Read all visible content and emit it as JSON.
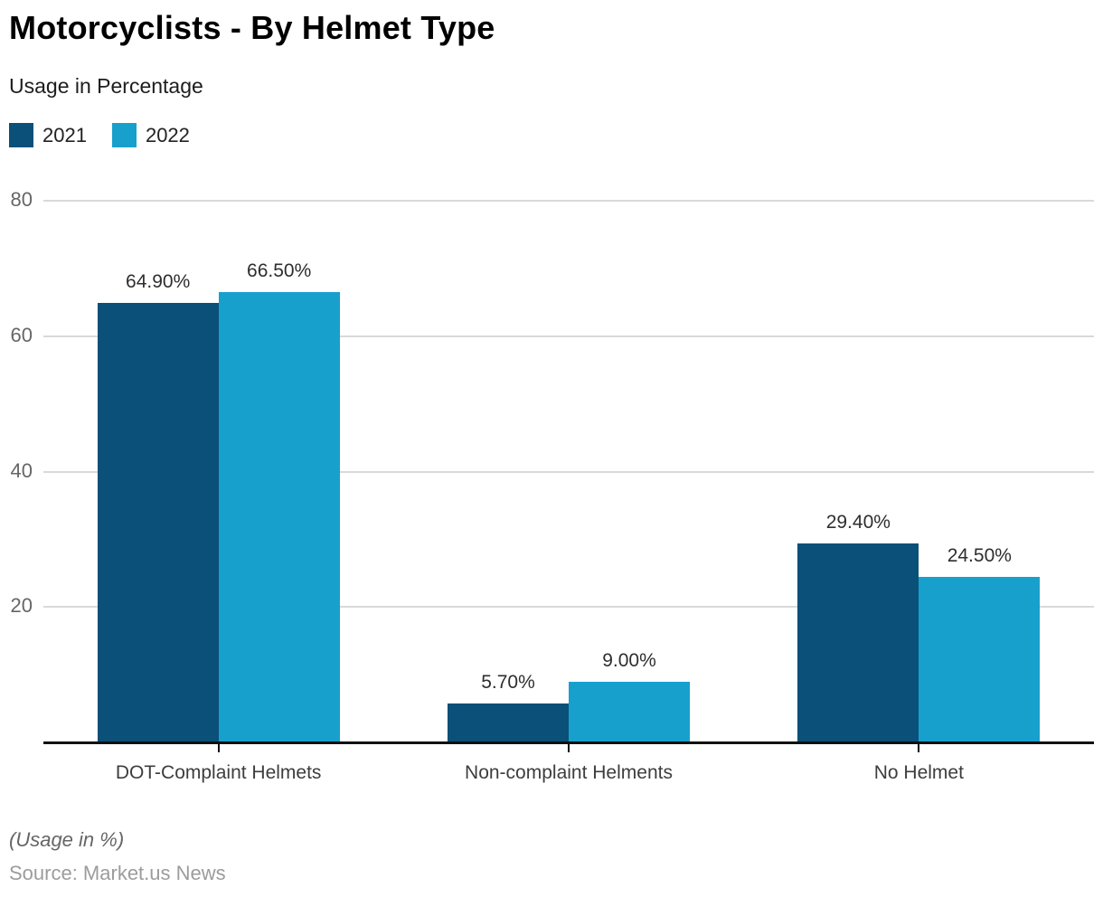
{
  "header": {
    "title": "Motorcyclists - By Helmet Type",
    "subtitle": "Usage in Percentage"
  },
  "footer": {
    "note": "(Usage in %)",
    "source": "Source: Market.us News"
  },
  "colors": {
    "series_2021": "#0a5078",
    "series_2022": "#18a0cd",
    "gridline": "#d9d9d9",
    "axis": "#111111",
    "background": "#ffffff"
  },
  "chart_data": {
    "type": "bar",
    "title": "Motorcyclists - By Helmet Type",
    "subtitle": "Usage in Percentage",
    "xlabel": "",
    "ylabel": "",
    "categories": [
      "DOT-Complaint Helmets",
      "Non-complaint Helments",
      "No Helmet"
    ],
    "series": [
      {
        "name": "2021",
        "color": "#0a5078",
        "values": [
          64.9,
          5.7,
          29.4
        ],
        "labels": [
          "64.90%",
          "5.70%",
          "29.40%"
        ]
      },
      {
        "name": "2022",
        "color": "#18a0cd",
        "values": [
          66.5,
          9.0,
          24.5
        ],
        "labels": [
          "66.50%",
          "9.00%",
          "24.50%"
        ]
      }
    ],
    "yticks": [
      20,
      40,
      60,
      80
    ],
    "ylim": [
      0,
      80
    ],
    "grid": true,
    "legend_position": "top-left"
  }
}
